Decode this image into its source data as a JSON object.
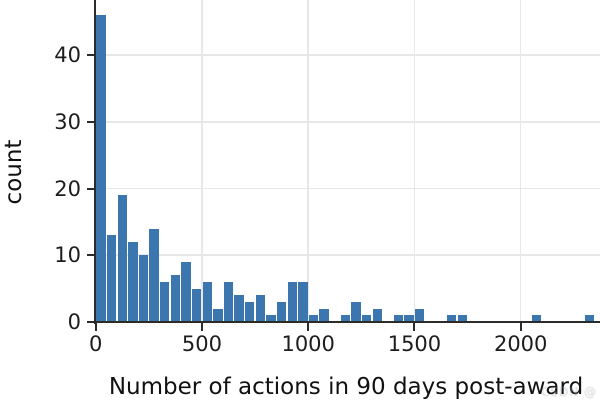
{
  "chart_data": {
    "type": "bar",
    "subtype": "histogram",
    "title": "",
    "xlabel": "Number of actions in 90 days post-award",
    "ylabel": "count",
    "bin_width": 50,
    "first_bin_start": 0,
    "bin_starts": [
      0,
      50,
      100,
      150,
      200,
      250,
      300,
      350,
      400,
      450,
      500,
      550,
      600,
      650,
      700,
      750,
      800,
      850,
      900,
      950,
      1000,
      1050,
      1100,
      1150,
      1200,
      1250,
      1300,
      1350,
      1400,
      1450,
      1500,
      1550,
      1600,
      1650,
      1700,
      1750,
      1800,
      1850,
      1900,
      1950,
      2000,
      2050,
      2100,
      2150,
      2200,
      2250,
      2300
    ],
    "values": [
      46,
      13,
      19,
      12,
      10,
      14,
      6,
      7,
      9,
      5,
      6,
      2,
      6,
      4,
      3,
      4,
      1,
      3,
      6,
      6,
      1,
      2,
      0,
      1,
      3,
      1,
      2,
      0,
      1,
      1,
      2,
      0,
      0,
      1,
      1,
      0,
      0,
      0,
      0,
      0,
      0,
      1,
      0,
      0,
      0,
      0,
      1
    ],
    "x_ticks": [
      0,
      500,
      1000,
      1500,
      2000
    ],
    "x_tick_labels": [
      "0",
      "500",
      "1000",
      "1500",
      "2000"
    ],
    "y_ticks": [
      0,
      10,
      20,
      30,
      40
    ],
    "y_tick_labels": [
      "0",
      "10",
      "20",
      "30",
      "40"
    ],
    "xlim": [
      0,
      2370
    ],
    "ylim": [
      0,
      48.3
    ],
    "grid": true,
    "legend": false,
    "bar_color": "#3c76af",
    "axis_color": "#2b2b2b",
    "text_color": "#1d1d1d",
    "grid_color": "#e7e7e7",
    "background_color": "#ffffff"
  },
  "watermark": {
    "text": "CSDN @"
  }
}
